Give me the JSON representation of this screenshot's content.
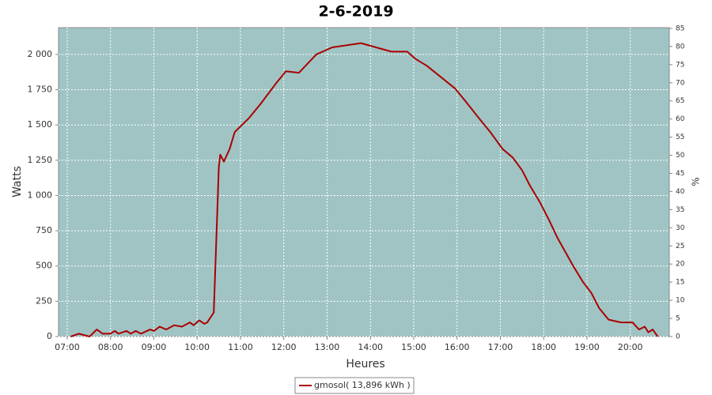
{
  "chart_data": {
    "type": "line",
    "title": "2-6-2019",
    "xlabel": "Heures",
    "ylabel": "Watts",
    "y2label": "%",
    "x": [
      "07:05",
      "07:16",
      "07:31",
      "07:41",
      "07:49",
      "08:00",
      "08:06",
      "08:11",
      "08:22",
      "08:28",
      "08:35",
      "08:42",
      "08:55",
      "09:00",
      "09:08",
      "09:17",
      "09:28",
      "09:39",
      "09:50",
      "09:55",
      "10:03",
      "10:10",
      "10:14",
      "10:23",
      "10:26",
      "10:30",
      "10:32",
      "10:37",
      "10:45",
      "10:52",
      "11:12",
      "11:28",
      "11:50",
      "12:03",
      "12:21",
      "12:45",
      "13:07",
      "13:47",
      "14:29",
      "14:51",
      "15:02",
      "15:18",
      "15:40",
      "15:57",
      "16:13",
      "16:30",
      "16:46",
      "17:03",
      "17:17",
      "17:30",
      "17:41",
      "17:55",
      "18:08",
      "18:19",
      "18:30",
      "18:41",
      "18:54",
      "19:06",
      "19:17",
      "19:30",
      "19:47",
      "20:03",
      "20:12",
      "20:20",
      "20:25",
      "20:31",
      "20:38"
    ],
    "series": [
      {
        "name": "gmosol( 13,896 kWh )",
        "color": "#aa0000",
        "values": [
          0,
          20,
          0,
          50,
          20,
          20,
          40,
          20,
          40,
          20,
          40,
          20,
          50,
          40,
          70,
          50,
          80,
          70,
          100,
          80,
          115,
          90,
          100,
          170,
          600,
          1200,
          1290,
          1240,
          1330,
          1450,
          1550,
          1650,
          1800,
          1880,
          1870,
          2000,
          2050,
          2080,
          2020,
          2020,
          1970,
          1920,
          1830,
          1760,
          1660,
          1550,
          1450,
          1330,
          1270,
          1180,
          1070,
          950,
          820,
          700,
          600,
          500,
          390,
          310,
          200,
          120,
          100,
          100,
          50,
          70,
          30,
          50,
          0
        ]
      }
    ],
    "xlim": [
      "06:48",
      "20:54"
    ],
    "xticks": [
      "07:00",
      "08:00",
      "09:00",
      "10:00",
      "11:00",
      "12:00",
      "13:00",
      "14:00",
      "15:00",
      "16:00",
      "17:00",
      "18:00",
      "19:00",
      "20:00"
    ],
    "ylim": [
      0,
      2190
    ],
    "yticks": [
      0,
      250,
      500,
      750,
      {
        "value": 1000,
        "label": "1 000"
      },
      {
        "value": 1250,
        "label": "1 250"
      },
      {
        "value": 1500,
        "label": "1 500"
      },
      {
        "value": 1750,
        "label": "1 750"
      },
      {
        "value": 2000,
        "label": "2 000"
      }
    ],
    "y2lim": [
      0,
      85.2
    ],
    "y2ticks": [
      0,
      5,
      10,
      15,
      20,
      25,
      30,
      35,
      40,
      45,
      50,
      55,
      60,
      65,
      70,
      75,
      80,
      85
    ],
    "grid": true,
    "background": "#a0c4c4",
    "legend": "bottom"
  }
}
